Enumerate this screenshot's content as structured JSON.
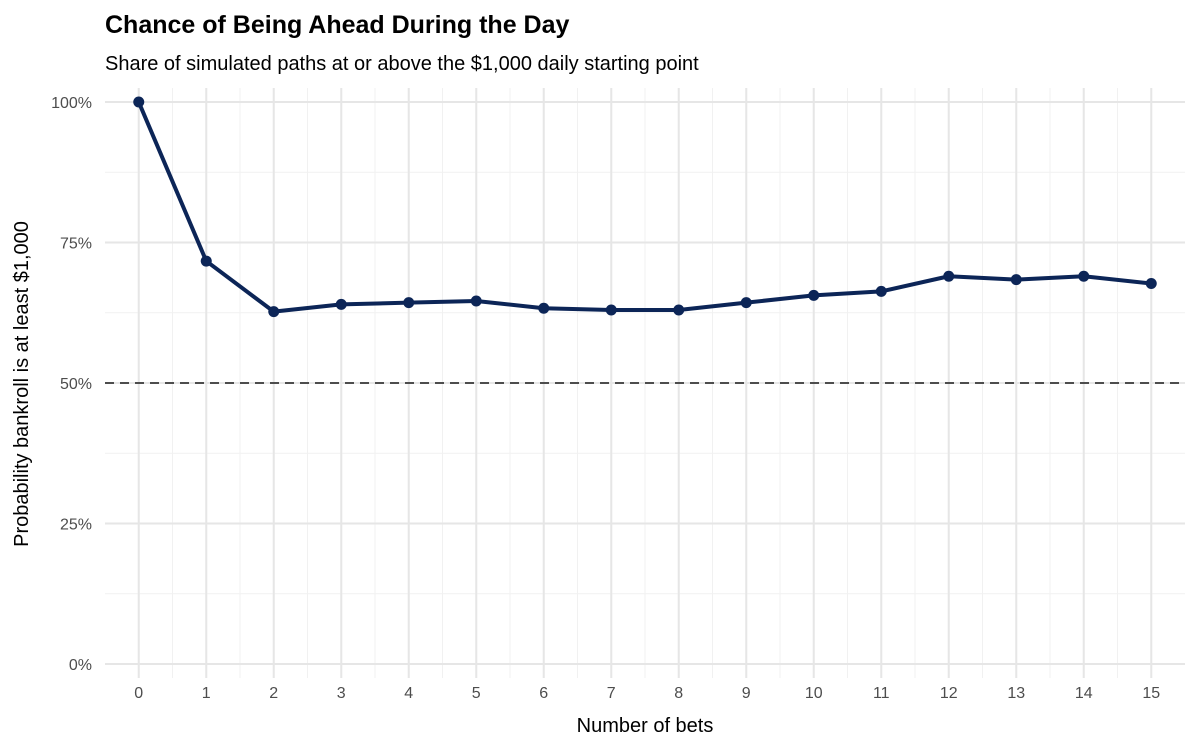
{
  "chart_data": {
    "type": "line",
    "title": "Chance of Being Ahead During the Day",
    "subtitle": "Share of simulated paths at or above the $1,000 daily starting point",
    "xlabel": "Number of bets",
    "ylabel": "Probability bankroll is at least $1,000",
    "x": [
      0,
      1,
      2,
      3,
      4,
      5,
      6,
      7,
      8,
      9,
      10,
      11,
      12,
      13,
      14,
      15
    ],
    "series": [
      {
        "values": [
          1.0,
          0.717,
          0.627,
          0.64,
          0.643,
          0.646,
          0.633,
          0.63,
          0.63,
          0.643,
          0.656,
          0.663,
          0.69,
          0.684,
          0.69,
          0.677
        ],
        "color": "#0c2557",
        "markers": true
      }
    ],
    "reference_line": {
      "y": 0.5,
      "style": "dashed",
      "color": "#4d4d4d"
    },
    "xlim": [
      -0.5,
      15.5
    ],
    "ylim": [
      -0.025,
      1.025
    ],
    "x_ticks": [
      0,
      1,
      2,
      3,
      4,
      5,
      6,
      7,
      8,
      9,
      10,
      11,
      12,
      13,
      14,
      15
    ],
    "x_tick_labels": [
      "0",
      "1",
      "2",
      "3",
      "4",
      "5",
      "6",
      "7",
      "8",
      "9",
      "10",
      "11",
      "12",
      "13",
      "14",
      "15"
    ],
    "y_ticks": [
      0,
      0.25,
      0.5,
      0.75,
      1.0
    ],
    "y_tick_labels": [
      "0%",
      "25%",
      "50%",
      "75%",
      "100%"
    ],
    "grid": true,
    "legend": "none"
  }
}
